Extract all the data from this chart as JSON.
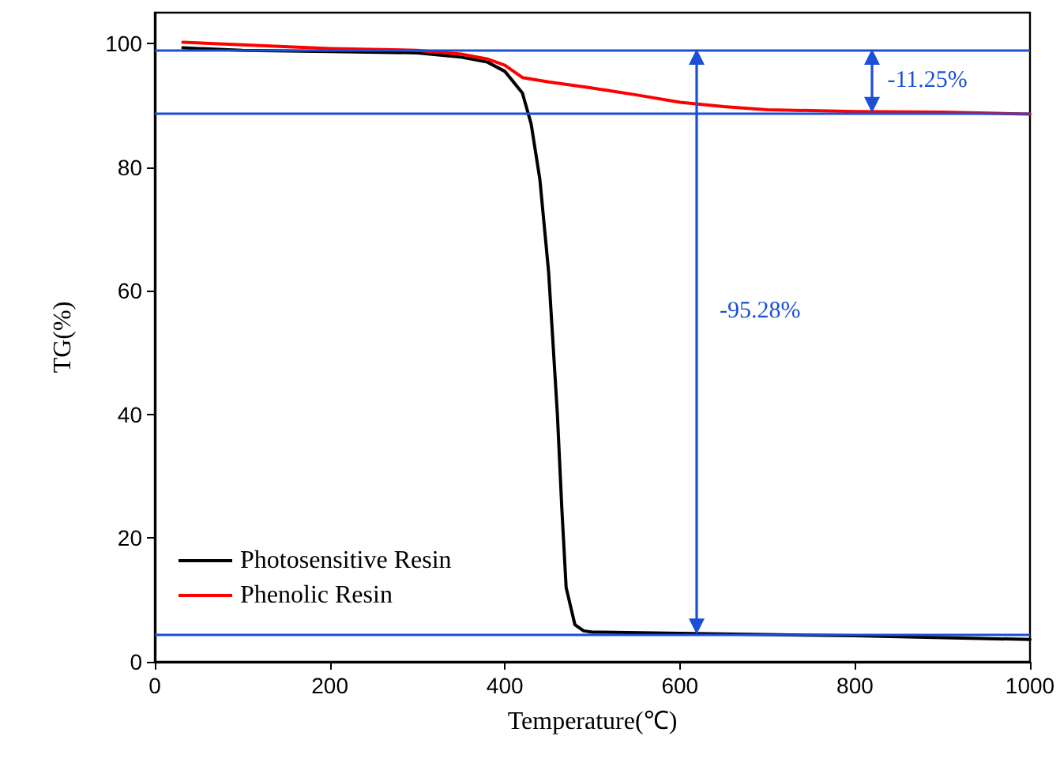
{
  "chart_data": {
    "type": "line",
    "xlabel": "Temperature(℃)",
    "ylabel": "TG(%)",
    "xlim": [
      0,
      1000
    ],
    "xticks": [
      0,
      200,
      400,
      600,
      800,
      1000
    ],
    "ylim": [
      0,
      105
    ],
    "yticks": [
      0,
      20,
      40,
      60,
      80,
      100
    ],
    "grid": false,
    "legend": "bottom left",
    "marker": "none",
    "line_style": "solid",
    "series": [
      {
        "name": "Photosensitive Resin",
        "color": "#000000",
        "x": [
          32,
          100,
          200,
          300,
          350,
          380,
          400,
          420,
          430,
          440,
          450,
          460,
          465,
          470,
          480,
          490,
          500,
          600,
          800,
          1000
        ],
        "values": [
          99.3,
          98.9,
          98.7,
          98.5,
          97.8,
          97,
          95.5,
          92,
          87,
          78,
          63,
          40,
          25,
          12,
          6,
          5,
          4.8,
          4.6,
          4.2,
          3.6
        ]
      },
      {
        "name": "Phenolic Resin",
        "color": "#ff0000",
        "x": [
          32,
          100,
          200,
          300,
          350,
          380,
          400,
          420,
          450,
          500,
          550,
          600,
          650,
          700,
          800,
          900,
          1000
        ],
        "values": [
          100.2,
          99.8,
          99.2,
          98.9,
          98.3,
          97.5,
          96.5,
          94.5,
          93.8,
          92.8,
          91.7,
          90.5,
          89.8,
          89.3,
          89,
          88.9,
          88.6
        ]
      }
    ],
    "ref_lines": [
      {
        "axis": "y",
        "value": 99,
        "color": "#1a4fd6"
      },
      {
        "axis": "y",
        "value": 88.7,
        "color": "#1a4fd6"
      },
      {
        "axis": "y",
        "value": 4.3,
        "color": "#1a4fd6"
      }
    ],
    "annotations": [
      "-11.25%",
      "-95.28%"
    ]
  }
}
